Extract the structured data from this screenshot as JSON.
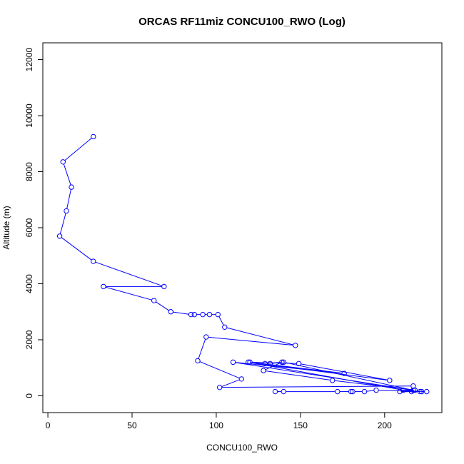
{
  "chart_data": {
    "type": "line",
    "title": "ORCAS RF11miz CONCU100_RWO (Log)",
    "xlabel": "CONCU100_RWO",
    "ylabel": "Altitude (m)",
    "xlim": [
      -3,
      234
    ],
    "ylim": [
      -600,
      12600
    ],
    "xticks": [
      0,
      50,
      100,
      150,
      200
    ],
    "yticks": [
      0,
      2000,
      4000,
      6000,
      8000,
      10000,
      12000
    ],
    "grid": false,
    "markers": "open-circle",
    "colors": {
      "series": "#0000ff",
      "axis": "#000000",
      "background": "#ffffff"
    },
    "series": [
      {
        "x": [
          27,
          9,
          14,
          11,
          7,
          27,
          69,
          33,
          63,
          73,
          85,
          87,
          92,
          96,
          101,
          105,
          147,
          94,
          89,
          115,
          102,
          217,
          216,
          119,
          203,
          149,
          120,
          176,
          110,
          217,
          140,
          132,
          129,
          139,
          128,
          169,
          218,
          211,
          222,
          209,
          221,
          225,
          195,
          188,
          181,
          180,
          172,
          140,
          135
        ],
        "y": [
          9250,
          8350,
          7450,
          6600,
          5700,
          4800,
          3900,
          3900,
          3400,
          3000,
          2900,
          2900,
          2900,
          2900,
          2900,
          2450,
          1800,
          2100,
          1250,
          600,
          300,
          350,
          150,
          1200,
          550,
          1150,
          1200,
          800,
          1200,
          200,
          1200,
          1150,
          1150,
          1200,
          900,
          550,
          200,
          200,
          150,
          150,
          150,
          150,
          200,
          150,
          150,
          150,
          150,
          150,
          150
        ]
      }
    ]
  }
}
